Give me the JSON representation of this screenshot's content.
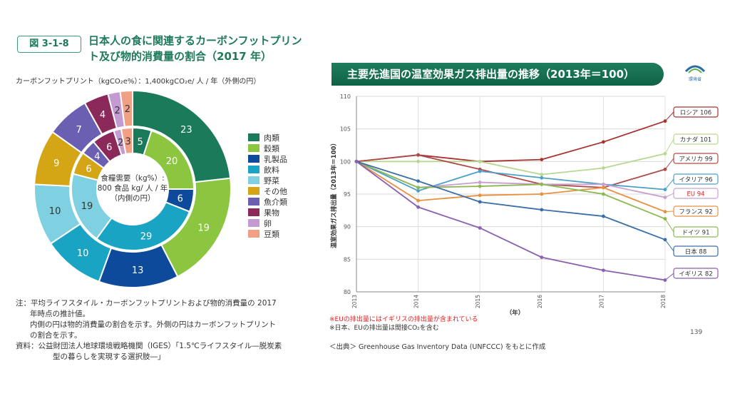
{
  "left_figure": {
    "tag": "図 3-1-8",
    "title": "日本人の食に関連するカーボンフットプリント及び物的消費量の割合（2017 年）",
    "subtitle": "カーボンフットプリント（kgCO₂e%）：1,400kgCO₂e/ 人 / 年（外側の円）",
    "center_text": [
      "食糧需要（kg%）:",
      "800 食品 kg/ 人 / 年",
      "（内側の円）"
    ],
    "notes": [
      "注：平均ライフスタイル・カーボンフットプリントおよび物的消費量の 2017",
      "年時点の推計値。",
      "内側の円は物的消費量の割合を示す。外側の円はカーボンフットプリント",
      "の割合を示す。",
      "資料：公益財団法人地球環境戦略機関（IGES）「1.5℃ライフスタイル―脱炭素",
      "型の暮らしを実現する選択肢―」"
    ]
  },
  "right_figure": {
    "title": "主要先進国の温室効果ガス排出量の推移（2013年＝100）",
    "ministry": "環境省",
    "notes": [
      "※EUの排出量にはイギリスの排出量が含まれている",
      "※日本、EUの排出量は間接CO₂を含む"
    ],
    "source": "＜出典＞ Greenhouse Gas Inventory Data (UNFCCC) をもとに作成",
    "page": "139"
  },
  "chart_data": [
    {
      "type": "pie",
      "title": "",
      "categories": [
        "肉類",
        "穀類",
        "乳製品",
        "飲料",
        "野菜",
        "その他",
        "魚介類",
        "果物",
        "卵",
        "豆類"
      ],
      "colors": [
        "#1a7a5a",
        "#8cc53f",
        "#0d4a9c",
        "#1aa4c4",
        "#7fd0e0",
        "#d4a514",
        "#6a5fb0",
        "#8b2a5a",
        "#c49ad2",
        "#f0a084"
      ],
      "series": [
        {
          "name": "外側の円",
          "values": [
            23,
            19,
            13,
            10,
            10,
            9,
            7,
            4,
            2,
            2
          ]
        },
        {
          "name": "内側の円",
          "values": [
            5,
            20,
            6,
            29,
            19,
            6,
            4,
            6,
            2,
            3
          ]
        }
      ]
    },
    {
      "type": "line",
      "title": "主要先進国の温室効果ガス排出量の推移（2013年＝100）",
      "xlabel": "（年）",
      "ylabel": "温室効果ガス排出量（2013年＝100）",
      "x": [
        "2013",
        "2014",
        "2015",
        "2016",
        "2017",
        "2018"
      ],
      "ylim": [
        80,
        110
      ],
      "yticks": [
        80,
        85,
        90,
        95,
        100,
        105,
        110
      ],
      "grid": true,
      "series": [
        {
          "name": "ロシア",
          "label": "ロシア 106",
          "color": "#a83232",
          "values": [
            100,
            101,
            100,
            100.3,
            103,
            106.2
          ]
        },
        {
          "name": "カナダ",
          "label": "カナダ 101",
          "color": "#b8d890",
          "values": [
            100,
            100,
            100,
            98,
            99,
            101.2
          ]
        },
        {
          "name": "アメリカ",
          "label": "アメリカ 99",
          "color": "#b04a4a",
          "values": [
            100,
            101,
            98.8,
            96.5,
            96,
            98.8
          ]
        },
        {
          "name": "イタリア",
          "label": "イタリア 96",
          "color": "#4aa0c8",
          "values": [
            100,
            95.5,
            98.5,
            97.5,
            96.5,
            95.7
          ]
        },
        {
          "name": "EU",
          "label": "EU 94",
          "color": "#c8a0d0",
          "values": [
            100,
            96,
            96.8,
            96.5,
            96.5,
            94.5
          ]
        },
        {
          "name": "フランス",
          "label": "フランス 92",
          "color": "#e89040",
          "values": [
            100,
            94,
            94.8,
            95,
            96,
            92.3
          ]
        },
        {
          "name": "ドイツ",
          "label": "ドイツ 91",
          "color": "#8cb850",
          "values": [
            100,
            96,
            96.2,
            96.5,
            95,
            91.2
          ]
        },
        {
          "name": "日本",
          "label": "日本 88",
          "color": "#3a6ea8",
          "values": [
            100,
            97,
            93.8,
            92.6,
            91.6,
            88
          ]
        },
        {
          "name": "イギリス",
          "label": "イギリス 82",
          "color": "#8a60b0",
          "values": [
            100,
            93,
            89.8,
            85.3,
            83.3,
            81.8
          ]
        }
      ]
    }
  ]
}
